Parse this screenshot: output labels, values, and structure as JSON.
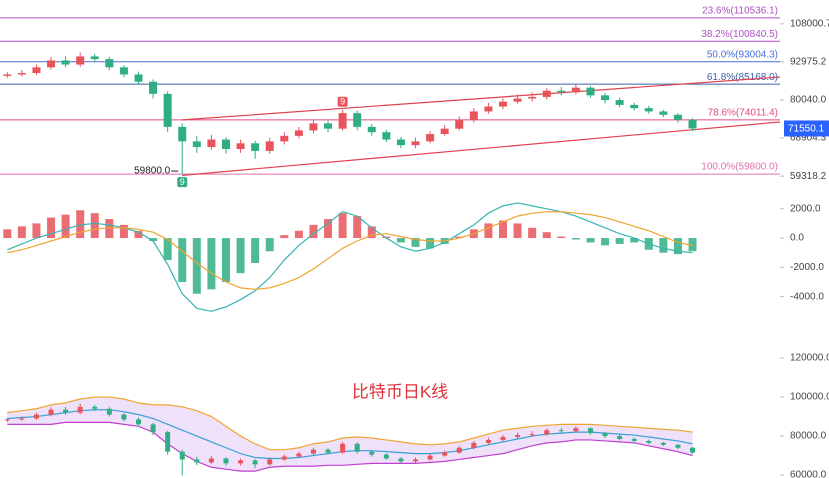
{
  "chart_data": [
    {
      "type": "candlestick",
      "yscale": "log",
      "ylim": [
        54000,
        118600
      ],
      "xlim": [
        -0.5,
        53
      ],
      "yticks": [
        108000.7,
        92975.2,
        {
          "value": 80040,
          "label": "80040.0"
        },
        68904.3,
        59318.2
      ],
      "up_color": "#e8545c",
      "down_color": "#2fae84",
      "candles": {
        "open": [
          88000,
          88500,
          89000,
          91000,
          93500,
          92000,
          95000,
          94000,
          91000,
          88500,
          86000,
          82000,
          72000,
          68000,
          66500,
          68500,
          66000,
          67500,
          65500,
          68000,
          69500,
          71000,
          73000,
          71500,
          76000,
          72000,
          70500,
          68500,
          67000,
          68000,
          70000,
          71500,
          74000,
          76500,
          78000,
          79500,
          80500,
          81000,
          83000,
          82500,
          84000,
          81500,
          80000,
          78500,
          77500,
          76500,
          75500,
          74000
        ],
        "high": [
          89300,
          90000,
          92000,
          94800,
          95000,
          96500,
          96000,
          94800,
          91800,
          89500,
          86800,
          82800,
          73000,
          69500,
          69800,
          69200,
          68500,
          68200,
          69000,
          70500,
          72000,
          74000,
          73800,
          77000,
          76800,
          72800,
          71200,
          69200,
          69000,
          70800,
          72500,
          75000,
          77500,
          79200,
          80500,
          81800,
          82500,
          84000,
          84200,
          85000,
          84500,
          82200,
          80800,
          79200,
          78200,
          77000,
          76000,
          74500
        ],
        "low": [
          87200,
          87800,
          88300,
          90200,
          91000,
          91200,
          92800,
          90000,
          87500,
          85000,
          80500,
          70500,
          59800,
          65000,
          65800,
          64800,
          65000,
          63500,
          64800,
          67200,
          68800,
          70200,
          70500,
          71000,
          71000,
          69500,
          67800,
          66200,
          66200,
          67500,
          69500,
          71000,
          73200,
          75800,
          77200,
          78800,
          79500,
          80200,
          81500,
          81800,
          80800,
          79000,
          77800,
          76800,
          75800,
          74800,
          73200,
          70800
        ],
        "close": [
          88500,
          89000,
          91000,
          93500,
          92000,
          95000,
          94000,
          91000,
          88500,
          86000,
          82000,
          72000,
          68000,
          66500,
          68500,
          66000,
          67500,
          65500,
          68000,
          69500,
          71000,
          73000,
          71500,
          76000,
          72000,
          70500,
          68500,
          67000,
          68000,
          70000,
          71500,
          74000,
          76500,
          78000,
          79500,
          80500,
          81000,
          83000,
          82500,
          84000,
          81500,
          80000,
          78500,
          77500,
          76500,
          75500,
          74000,
          71550.1
        ]
      },
      "last_price_color": "#2962ff",
      "fib_levels": [
        {
          "label": "23.6%(110536.1)",
          "value": 110536.1,
          "color": "#b04fc4"
        },
        {
          "label": "38.2%(100840.5)",
          "value": 100840.5,
          "color": "#b04fc4"
        },
        {
          "label": "50.0%(93004.3)",
          "value": 93004.3,
          "color": "#4a6fd6"
        },
        {
          "label": "61.8%(85168.0)",
          "value": 85168.0,
          "color": "#3a5fa8"
        },
        {
          "label": "78.6%(74011.4)",
          "value": 74011.4,
          "color": "#e04a86"
        },
        {
          "label": "100.0%(59800.0)",
          "value": 59800.0,
          "color": "#e070b0"
        }
      ],
      "trendlines": [
        {
          "color": "#e0414e",
          "from": [
            12,
            74000
          ],
          "to": [
            53,
            87600
          ]
        },
        {
          "color": "#e0414e",
          "from": [
            12,
            59500
          ],
          "to": [
            53,
            73400
          ]
        }
      ],
      "low_label": "59800.0",
      "markers": [
        {
          "text": "9",
          "candle": 12,
          "color": "#2fae84"
        },
        {
          "text": "9",
          "candle": 23,
          "color": "#e8545c"
        }
      ]
    },
    {
      "type": "macd",
      "ylim": [
        -5500,
        2600
      ],
      "xlim": [
        -0.5,
        53
      ],
      "yticks": [
        {
          "value": 2000,
          "label": "2000.0"
        },
        {
          "value": 0,
          "label": "0.0"
        },
        {
          "value": -2000,
          "label": "-2000.0"
        },
        {
          "value": -4000,
          "label": "-4000.0"
        }
      ],
      "up_color": "#e8545c",
      "down_color": "#2fae84",
      "histogram": [
        600,
        800,
        1000,
        1400,
        1600,
        1900,
        1700,
        1300,
        900,
        500,
        -200,
        -1500,
        -3000,
        -3800,
        -3500,
        -3000,
        -2400,
        -1700,
        -900,
        200,
        500,
        900,
        1300,
        1700,
        1500,
        800,
        100,
        -300,
        -600,
        -700,
        -400,
        100,
        600,
        1000,
        1200,
        1000,
        700,
        400,
        100,
        -100,
        -300,
        -500,
        -400,
        -300,
        -800,
        -1000,
        -1100,
        -900
      ],
      "series": [
        {
          "color": "#35b5b0",
          "values": [
            -800,
            -400,
            0,
            300,
            600,
            900,
            1000,
            900,
            700,
            400,
            -200,
            -1800,
            -3800,
            -4800,
            -5000,
            -4700,
            -4200,
            -3600,
            -2700,
            -1500,
            -500,
            300,
            1000,
            1800,
            1500,
            700,
            0,
            -600,
            -900,
            -700,
            -300,
            300,
            900,
            1700,
            2200,
            2400,
            2200,
            2000,
            1800,
            1500,
            1100,
            700,
            300,
            0,
            -400,
            -700,
            -900,
            -1000
          ]
        },
        {
          "color": "#f0a430",
          "values": [
            -1000,
            -800,
            -500,
            -200,
            100,
            400,
            600,
            700,
            700,
            600,
            400,
            -100,
            -900,
            -1700,
            -2400,
            -3000,
            -3400,
            -3500,
            -3400,
            -3100,
            -2700,
            -2100,
            -1400,
            -700,
            -200,
            200,
            300,
            100,
            -100,
            -200,
            -200,
            0,
            300,
            700,
            1100,
            1500,
            1700,
            1800,
            1800,
            1700,
            1600,
            1400,
            1100,
            800,
            500,
            100,
            -300,
            -500
          ]
        }
      ]
    },
    {
      "type": "bollinger",
      "title": "比特币日K线",
      "ylim": [
        59000,
        129000
      ],
      "xlim": [
        -0.5,
        53
      ],
      "yticks": [
        {
          "value": 120000,
          "label": "120000.0"
        },
        {
          "value": 100000,
          "label": "100000.0"
        },
        {
          "value": 80000,
          "label": "80000.0"
        },
        {
          "value": 60000,
          "label": "60000.0"
        }
      ],
      "band_fill": "#e8d4f6",
      "upper": {
        "color": "#f0a430",
        "values": [
          92000,
          93000,
          94000,
          96000,
          97000,
          99000,
          100000,
          100000,
          99000,
          97000,
          96000,
          96000,
          95000,
          93000,
          90000,
          85000,
          80000,
          76000,
          73000,
          73000,
          74000,
          76000,
          77000,
          79000,
          79500,
          79000,
          78000,
          77000,
          76000,
          75500,
          76000,
          77000,
          79000,
          81000,
          83000,
          84000,
          85000,
          85500,
          86000,
          86000,
          86000,
          85500,
          85000,
          84500,
          84000,
          83500,
          83000,
          82000
        ]
      },
      "middle": {
        "color": "#3aa0d8",
        "values": [
          89000,
          89500,
          90000,
          91000,
          92000,
          93000,
          93500,
          93500,
          92500,
          91000,
          89000,
          86000,
          83000,
          80000,
          77000,
          74000,
          71000,
          69000,
          68500,
          68500,
          69000,
          70000,
          71000,
          72000,
          72500,
          72500,
          72000,
          71500,
          71000,
          71000,
          71500,
          72500,
          74000,
          75500,
          77000,
          78500,
          80000,
          81000,
          81500,
          82000,
          82000,
          81500,
          81000,
          80500,
          79500,
          78500,
          77500,
          76000
        ]
      },
      "lower": {
        "color": "#c040d0",
        "values": [
          86000,
          86000,
          86000,
          86000,
          87000,
          87000,
          87000,
          87000,
          86000,
          85000,
          82000,
          76000,
          71000,
          67000,
          64000,
          63000,
          62000,
          62000,
          64000,
          64500,
          64500,
          64500,
          65000,
          65000,
          65500,
          66000,
          66000,
          66000,
          66000,
          66500,
          67000,
          68000,
          69000,
          70000,
          71000,
          73000,
          75000,
          76500,
          77000,
          78000,
          78000,
          77500,
          77000,
          76500,
          75000,
          73500,
          72000,
          70000
        ]
      },
      "title_color": "#e0303a"
    }
  ]
}
